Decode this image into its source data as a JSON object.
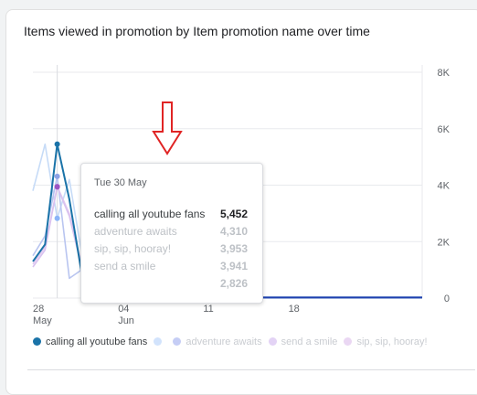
{
  "card": {
    "title": "Items viewed in promotion by Item promotion name over time"
  },
  "tooltip": {
    "date": "Tue 30 May",
    "rows": [
      {
        "name": "calling all youtube fans",
        "value": "5,452"
      },
      {
        "name": "adventure awaits",
        "value": "4,310"
      },
      {
        "name": "sip, sip, hooray!",
        "value": "3,953"
      },
      {
        "name": "send a smile",
        "value": "3,941"
      },
      {
        "name": "",
        "value": "2,826"
      }
    ]
  },
  "legend": {
    "items": [
      {
        "label": "calling all youtube fans",
        "color": "#1a73a8"
      },
      {
        "label": "",
        "color": "#d2e3fc"
      },
      {
        "label": "adventure awaits",
        "color": "#c5cdf5"
      },
      {
        "label": "send a smile",
        "color": "#e3d3f5"
      },
      {
        "label": "sip, sip, hooray!",
        "color": "#ead7f3"
      }
    ]
  },
  "chart_data": {
    "type": "line",
    "ylim": [
      0,
      8000
    ],
    "y_ticks": [
      "8K",
      "6K",
      "4K",
      "2K",
      "0"
    ],
    "x_ticks": [
      {
        "day": "28",
        "month": "May"
      },
      {
        "day": "04",
        "month": "Jun"
      },
      {
        "day": "11",
        "month": ""
      },
      {
        "day": "18",
        "month": ""
      }
    ],
    "highlight_date": "Tue 30 May",
    "series": [
      {
        "name": "calling all youtube fans",
        "color": "#1a73a8",
        "values": [
          1300,
          1900,
          5452,
          3500,
          900,
          150,
          60,
          40,
          20,
          20,
          20,
          20,
          20,
          20,
          20,
          20,
          20,
          20,
          20,
          20,
          20,
          20,
          20,
          20,
          20,
          20,
          20,
          20,
          20,
          20,
          20,
          20,
          20
        ]
      },
      {
        "color": "#c6dbf7",
        "values": [
          3800,
          5450,
          2826,
          4200,
          1600,
          300,
          80,
          30,
          20,
          20,
          20,
          20,
          20,
          20,
          20,
          20,
          20,
          20,
          20,
          20,
          20,
          20,
          20,
          20,
          20,
          20,
          20,
          20,
          20,
          20,
          20,
          20,
          20
        ]
      },
      {
        "name": "adventure awaits",
        "color": "#b9c5f0",
        "values": [
          1500,
          2200,
          4310,
          700,
          1000,
          250,
          60,
          20,
          20,
          20,
          20,
          20,
          20,
          20,
          20,
          20,
          20,
          20,
          20,
          20,
          20,
          20,
          20,
          20,
          20,
          20,
          20,
          20,
          20,
          20,
          20,
          20,
          20
        ]
      },
      {
        "name": "sip, sip, hooray!",
        "color": "#e2c9f0",
        "values": [
          1200,
          1800,
          3953,
          3000,
          1200,
          400,
          100,
          30,
          20,
          20,
          20,
          20,
          20,
          20,
          20,
          20,
          20,
          20,
          20,
          20,
          20,
          20,
          20,
          20,
          20,
          20,
          20,
          20,
          20,
          20,
          20,
          20,
          20
        ]
      },
      {
        "name": "send a smile",
        "color": "#d9c2ef",
        "values": [
          1100,
          1700,
          3941,
          2900,
          1100,
          350,
          90,
          30,
          20,
          20,
          20,
          20,
          20,
          20,
          20,
          20,
          20,
          20,
          20,
          20,
          20,
          20,
          20,
          20,
          20,
          20,
          20,
          20,
          20,
          20,
          20,
          20,
          20
        ]
      }
    ],
    "annotation": "down-arrow"
  }
}
